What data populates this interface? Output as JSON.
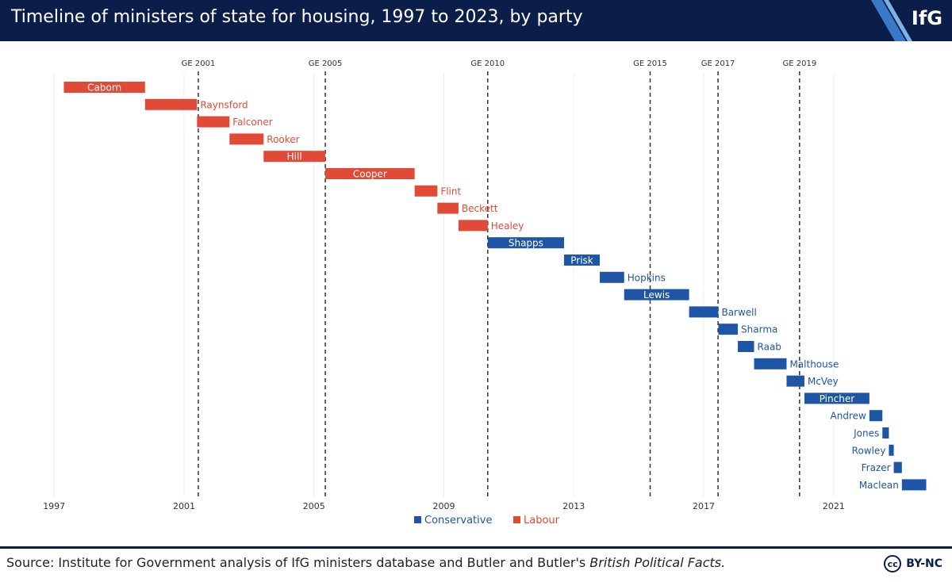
{
  "header": {
    "title": "Timeline of ministers of state for housing, 1997 to 2023, by party",
    "logo": "IfG"
  },
  "footer": {
    "source_prefix": "Source: Institute for Government analysis of IfG ministers database and Butler and Butler's ",
    "source_italic": "British Political Facts.",
    "license_icon": "cc-icon",
    "license_text": "BY-NC"
  },
  "colors": {
    "header_bg": "#0b1e4a",
    "Labour": "#e04a36",
    "Conservative": "#1f55a5",
    "gridline": "#eeeeee",
    "election_line": "#333333"
  },
  "chart_data": {
    "type": "gantt",
    "x_ticks": [
      1997,
      2001,
      2005,
      2009,
      2013,
      2017,
      2021
    ],
    "xlim": [
      1996.8,
      2023.3
    ],
    "grid": "vertical",
    "legend": {
      "position": "bottom-center",
      "entries": [
        "Conservative",
        "Labour"
      ]
    },
    "elections": [
      {
        "label": "GE 2001",
        "x": 2001.44
      },
      {
        "label": "GE 2005",
        "x": 2005.35
      },
      {
        "label": "GE 2010",
        "x": 2010.35
      },
      {
        "label": "GE 2015",
        "x": 2015.35
      },
      {
        "label": "GE 2017",
        "x": 2017.44
      },
      {
        "label": "GE 2019",
        "x": 2019.95
      }
    ],
    "ministers": [
      {
        "name": "Caborn",
        "party": "Labour",
        "start": 1997.3,
        "end": 1999.8,
        "label": "inside"
      },
      {
        "name": "Raynsford",
        "party": "Labour",
        "start": 1999.8,
        "end": 2001.4,
        "label": "right"
      },
      {
        "name": "Falconer",
        "party": "Labour",
        "start": 2001.4,
        "end": 2002.4,
        "label": "right"
      },
      {
        "name": "Rooker",
        "party": "Labour",
        "start": 2002.4,
        "end": 2003.45,
        "label": "right"
      },
      {
        "name": "Hill",
        "party": "Labour",
        "start": 2003.45,
        "end": 2005.35,
        "label": "inside"
      },
      {
        "name": "Cooper",
        "party": "Labour",
        "start": 2005.35,
        "end": 2008.1,
        "label": "inside"
      },
      {
        "name": "Flint",
        "party": "Labour",
        "start": 2008.1,
        "end": 2008.8,
        "label": "right"
      },
      {
        "name": "Beckett",
        "party": "Labour",
        "start": 2008.8,
        "end": 2009.45,
        "label": "right"
      },
      {
        "name": "Healey",
        "party": "Labour",
        "start": 2009.45,
        "end": 2010.35,
        "label": "right"
      },
      {
        "name": "Shapps",
        "party": "Conservative",
        "start": 2010.35,
        "end": 2012.7,
        "label": "inside"
      },
      {
        "name": "Prisk",
        "party": "Conservative",
        "start": 2012.7,
        "end": 2013.8,
        "label": "inside"
      },
      {
        "name": "Hopkins",
        "party": "Conservative",
        "start": 2013.8,
        "end": 2014.55,
        "label": "right"
      },
      {
        "name": "Lewis",
        "party": "Conservative",
        "start": 2014.55,
        "end": 2016.55,
        "label": "inside"
      },
      {
        "name": "Barwell",
        "party": "Conservative",
        "start": 2016.55,
        "end": 2017.45,
        "label": "right"
      },
      {
        "name": "Sharma",
        "party": "Conservative",
        "start": 2017.45,
        "end": 2018.05,
        "label": "right"
      },
      {
        "name": "Raab",
        "party": "Conservative",
        "start": 2018.05,
        "end": 2018.55,
        "label": "right"
      },
      {
        "name": "Malthouse",
        "party": "Conservative",
        "start": 2018.55,
        "end": 2019.55,
        "label": "right"
      },
      {
        "name": "McVey",
        "party": "Conservative",
        "start": 2019.55,
        "end": 2020.1,
        "label": "right"
      },
      {
        "name": "Pincher",
        "party": "Conservative",
        "start": 2020.1,
        "end": 2022.1,
        "label": "inside"
      },
      {
        "name": "Andrew",
        "party": "Conservative",
        "start": 2022.1,
        "end": 2022.5,
        "label": "left"
      },
      {
        "name": "Jones",
        "party": "Conservative",
        "start": 2022.5,
        "end": 2022.7,
        "label": "left"
      },
      {
        "name": "Rowley",
        "party": "Conservative",
        "start": 2022.7,
        "end": 2022.85,
        "label": "left"
      },
      {
        "name": "Frazer",
        "party": "Conservative",
        "start": 2022.85,
        "end": 2023.1,
        "label": "left"
      },
      {
        "name": "Maclean",
        "party": "Conservative",
        "start": 2023.1,
        "end": 2023.85,
        "label": "left"
      }
    ]
  }
}
